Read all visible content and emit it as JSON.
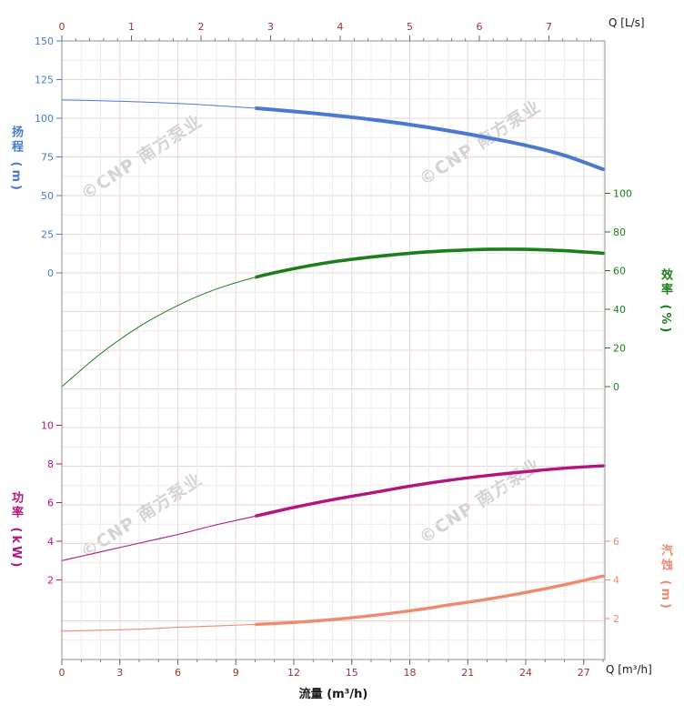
{
  "chart_data": {
    "type": "line",
    "watermark": "©CNP 南方泵业",
    "axes": {
      "top": {
        "label": "Q [L/s]",
        "ticks": [
          0,
          1,
          2,
          3,
          4,
          5,
          6,
          7
        ],
        "color": "#993333"
      },
      "bottom": {
        "label": "Q [m³/h]",
        "title": "流量 (m³/h)",
        "ticks": [
          0,
          3,
          6,
          9,
          12,
          15,
          18,
          21,
          24,
          27
        ],
        "color": "#993333",
        "range": [
          0,
          28.1
        ]
      },
      "head": {
        "title": "扬程 (m)",
        "unit": "m",
        "ticks": [
          150,
          125,
          100,
          75,
          50,
          25,
          0
        ],
        "range": [
          0,
          150
        ],
        "color": "#4a7ad0"
      },
      "efficiency": {
        "title": "效率 (%)",
        "unit": "%",
        "ticks": [
          100,
          80,
          60,
          40,
          20,
          0
        ],
        "range": [
          0,
          100
        ],
        "color": "#1b7e1b"
      },
      "power": {
        "title": "功率 (kW)",
        "unit": "kW",
        "ticks": [
          10,
          8,
          6,
          4,
          2
        ],
        "range": [
          2,
          10
        ],
        "color": "#b3157d"
      },
      "npsh": {
        "title": "汽蚀 (m)",
        "unit": "m",
        "ticks": [
          6,
          4,
          2
        ],
        "range": [
          2,
          6
        ],
        "color": "#ef8a70"
      }
    },
    "rated_range_starts_at": 10,
    "series": [
      {
        "name": "head",
        "axis": "head",
        "color": "#4a7ad0",
        "x": [
          0,
          2,
          4,
          6,
          8,
          10,
          12,
          14,
          16,
          18,
          20,
          22,
          24,
          26,
          28
        ],
        "y": [
          111.8,
          111.3,
          110.6,
          109.6,
          108.2,
          106.5,
          104.4,
          102,
          99.2,
          95.9,
          92,
          87.5,
          82.5,
          76,
          67
        ]
      },
      {
        "name": "efficiency",
        "axis": "efficiency",
        "color": "#1b7e1b",
        "x": [
          0,
          2,
          4,
          6,
          8,
          10,
          12,
          14,
          16,
          18,
          20,
          22,
          24,
          26,
          28
        ],
        "y": [
          0,
          17,
          31,
          42,
          50.5,
          56.5,
          61,
          64.5,
          67,
          69,
          70.3,
          71,
          71,
          70.3,
          69
        ]
      },
      {
        "name": "power",
        "axis": "power",
        "color": "#b3157d",
        "x": [
          0,
          2,
          4,
          6,
          8,
          10,
          12,
          14,
          16,
          18,
          20,
          22,
          24,
          26,
          28
        ],
        "y": [
          3,
          3.45,
          3.9,
          4.35,
          4.85,
          5.3,
          5.75,
          6.15,
          6.5,
          6.85,
          7.15,
          7.4,
          7.6,
          7.78,
          7.9
        ]
      },
      {
        "name": "npsh",
        "axis": "npsh",
        "color": "#ef8a70",
        "x": [
          0,
          2,
          4,
          6,
          8,
          10,
          12,
          14,
          16,
          18,
          20,
          22,
          24,
          26,
          28
        ],
        "y": [
          1.35,
          1.4,
          1.45,
          1.55,
          1.62,
          1.7,
          1.8,
          1.95,
          2.15,
          2.4,
          2.7,
          3,
          3.35,
          3.75,
          4.2
        ]
      }
    ]
  }
}
